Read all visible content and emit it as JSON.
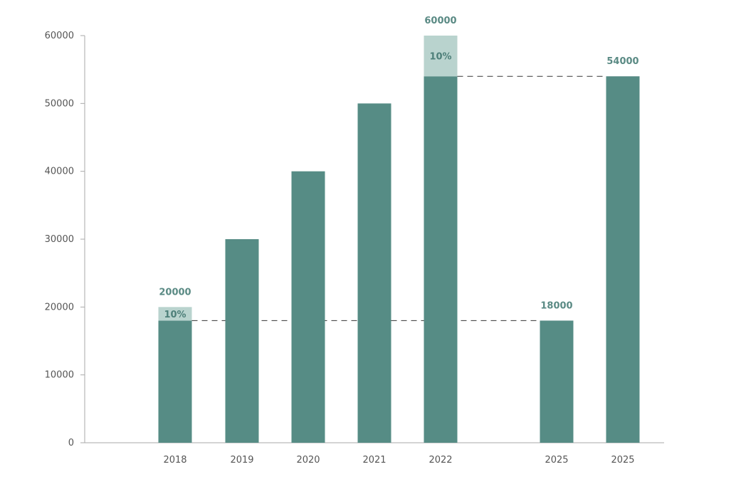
{
  "chart_data": {
    "type": "bar",
    "categories": [
      "2018",
      "2019",
      "2020",
      "2021",
      "2022",
      "2025",
      "2025"
    ],
    "values": [
      20000,
      30000,
      40000,
      50000,
      60000,
      18000,
      54000
    ],
    "solid_values": [
      18000,
      30000,
      40000,
      50000,
      54000,
      18000,
      54000
    ],
    "highlight_values": [
      2000,
      0,
      0,
      0,
      6000,
      0,
      0
    ],
    "value_labels": [
      "20000",
      "",
      "",
      "",
      "60000",
      "18000",
      "54000"
    ],
    "highlight_labels": [
      "10%",
      "",
      "",
      "",
      "10%",
      "",
      ""
    ],
    "reference_lines": [
      {
        "value": 18000,
        "from_category_index": 0,
        "to_category_index": 5
      },
      {
        "value": 54000,
        "from_category_index": 4,
        "to_category_index": 6
      }
    ],
    "yticks": [
      0,
      10000,
      20000,
      30000,
      40000,
      50000,
      60000
    ],
    "ylim": [
      0,
      60000
    ],
    "title": "",
    "xlabel": "",
    "ylabel": "",
    "grid": false,
    "colors": {
      "bar": "#568c85",
      "highlight": "#b9d3ce",
      "value_label": "#5a8a84",
      "axis": "#aaaaaa",
      "reference_line": "#333333"
    }
  }
}
